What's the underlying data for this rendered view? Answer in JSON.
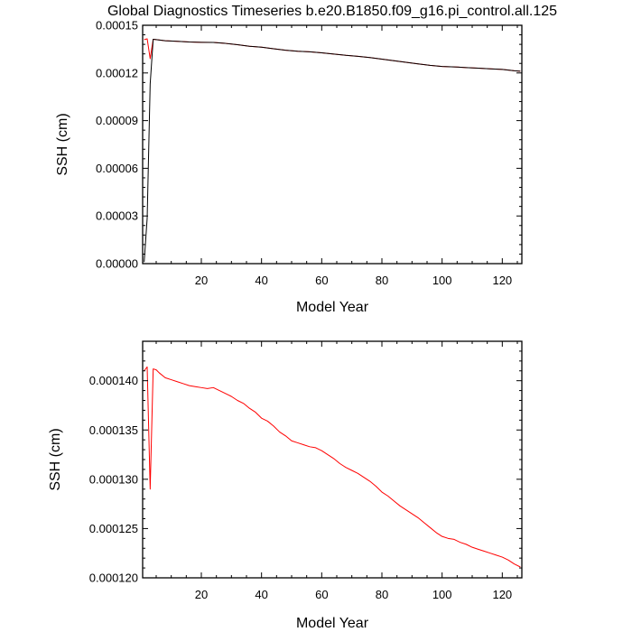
{
  "title": "Global Diagnostics Timeseries b.e20.B1850.f09_g16.pi_control.all.125",
  "colors": {
    "series_red": "#ff0000",
    "series_black": "#000000"
  },
  "chart_data": [
    {
      "type": "line",
      "xlabel": "Model Year",
      "ylabel": "SSH (cm)",
      "xlim": [
        0.5,
        126.5
      ],
      "ylim": [
        0,
        0.00015
      ],
      "x_ticks": [
        "20",
        "40",
        "60",
        "80",
        "100",
        "120"
      ],
      "y_ticks": [
        "0.00000",
        "0.00003",
        "0.00006",
        "0.00009",
        "0.00012",
        "0.00015"
      ],
      "series": [
        {
          "color": "#ff0000",
          "x": [
            1,
            2,
            3,
            4,
            5,
            8,
            12,
            16,
            20,
            24,
            28,
            32,
            36,
            40,
            44,
            48,
            52,
            56,
            60,
            64,
            68,
            72,
            76,
            80,
            84,
            88,
            92,
            96,
            100,
            104,
            108,
            112,
            116,
            120,
            124,
            126
          ],
          "y": [
            0.000141,
            0.0001415,
            0.000129,
            0.0001412,
            0.000141,
            0.0001403,
            0.0001399,
            0.0001395,
            0.0001393,
            0.0001392,
            0.0001386,
            0.0001378,
            0.0001368,
            0.0001362,
            0.0001352,
            0.0001343,
            0.0001337,
            0.0001333,
            0.0001327,
            0.0001319,
            0.0001311,
            0.0001305,
            0.0001297,
            0.0001287,
            0.0001277,
            0.0001267,
            0.0001257,
            0.0001248,
            0.0001241,
            0.0001238,
            0.0001234,
            0.000123,
            0.0001226,
            0.0001222,
            0.0001214,
            0.0001211
          ]
        },
        {
          "color": "#000000",
          "x": [
            1,
            2,
            3,
            4,
            5,
            8,
            12,
            16,
            20,
            24,
            28,
            32,
            36,
            40,
            44,
            48,
            52,
            56,
            60,
            64,
            68,
            72,
            76,
            80,
            84,
            88,
            92,
            96,
            100,
            104,
            108,
            112,
            116,
            120,
            124,
            126
          ],
          "y": [
            1e-06,
            2.85e-05,
            0.000113,
            0.0001412,
            0.000141,
            0.0001403,
            0.0001399,
            0.0001395,
            0.0001393,
            0.0001392,
            0.0001386,
            0.0001378,
            0.0001368,
            0.0001362,
            0.0001352,
            0.0001343,
            0.0001337,
            0.0001333,
            0.0001327,
            0.0001319,
            0.0001311,
            0.0001305,
            0.0001297,
            0.0001287,
            0.0001277,
            0.0001267,
            0.0001257,
            0.0001248,
            0.0001241,
            0.0001238,
            0.0001234,
            0.000123,
            0.0001226,
            0.0001222,
            0.0001214,
            0.0001211
          ]
        }
      ]
    },
    {
      "type": "line",
      "xlabel": "Model Year",
      "ylabel": "SSH (cm)",
      "xlim": [
        0.5,
        126.5
      ],
      "ylim": [
        0.00012,
        0.000144
      ],
      "x_ticks": [
        "20",
        "40",
        "60",
        "80",
        "100",
        "120"
      ],
      "y_ticks": [
        "0.000120",
        "0.000125",
        "0.000130",
        "0.000135",
        "0.000140"
      ],
      "series": [
        {
          "color": "#ff0000",
          "x": [
            1,
            2,
            3,
            4,
            5,
            6,
            8,
            10,
            12,
            14,
            16,
            18,
            20,
            22,
            24,
            26,
            28,
            30,
            32,
            34,
            36,
            38,
            40,
            42,
            44,
            46,
            48,
            50,
            52,
            54,
            56,
            58,
            60,
            62,
            64,
            66,
            68,
            70,
            72,
            74,
            76,
            78,
            80,
            82,
            84,
            86,
            88,
            90,
            92,
            94,
            96,
            98,
            100,
            102,
            104,
            106,
            108,
            110,
            112,
            114,
            116,
            118,
            120,
            122,
            124,
            126
          ],
          "y": [
            0.000141,
            0.0001414,
            0.000129,
            0.0001412,
            0.0001411,
            0.0001408,
            0.0001403,
            0.0001401,
            0.0001399,
            0.0001397,
            0.0001395,
            0.0001394,
            0.0001393,
            0.0001392,
            0.0001393,
            0.000139,
            0.0001387,
            0.0001384,
            0.000138,
            0.0001377,
            0.0001372,
            0.0001368,
            0.0001362,
            0.0001359,
            0.0001354,
            0.0001348,
            0.0001344,
            0.0001339,
            0.0001337,
            0.0001335,
            0.0001333,
            0.0001332,
            0.0001329,
            0.0001325,
            0.0001321,
            0.0001316,
            0.0001312,
            0.0001309,
            0.0001306,
            0.0001302,
            0.0001298,
            0.0001293,
            0.0001287,
            0.0001283,
            0.0001278,
            0.0001273,
            0.0001269,
            0.0001265,
            0.0001261,
            0.0001256,
            0.0001251,
            0.0001246,
            0.0001242,
            0.000124,
            0.0001239,
            0.0001236,
            0.0001234,
            0.0001231,
            0.0001229,
            0.0001227,
            0.0001225,
            0.0001223,
            0.0001221,
            0.0001218,
            0.0001214,
            0.0001211
          ]
        }
      ]
    }
  ]
}
